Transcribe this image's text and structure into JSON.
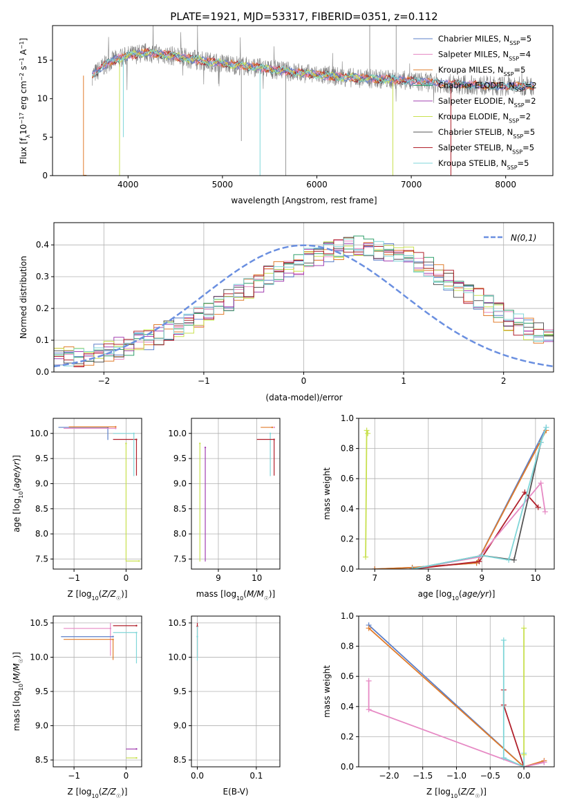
{
  "figure_title": "PLATE=1921, MJD=53317, FIBERID=0351, z=0.112",
  "colors": {
    "chabrier_miles": "#5b7fc8",
    "salpeter_miles": "#e689c4",
    "kroupa_miles": "#e07b2a",
    "chabrier_elodie": "#2e9f6a",
    "salpeter_elodie": "#a23fb0",
    "kroupa_elodie": "#c8e04e",
    "chabrier_stelib": "#555555",
    "salpeter_stelib": "#b01f2a",
    "kroupa_stelib": "#7fd6d8",
    "gaussian": "#6a8fe0",
    "data": "#7f7f7f"
  },
  "chart_data": [
    {
      "id": "spectrum",
      "type": "line",
      "xlabel": "wavelength [Angstrom, rest frame]",
      "ylabel": "Flux [f_λ10^-17 erg cm^-2 s^-1 A^-1]",
      "xlim": [
        3200,
        8500
      ],
      "ylim": [
        0,
        19.5
      ],
      "xticks": [
        4000,
        5000,
        6000,
        7000,
        8000
      ],
      "yticks": [
        0,
        5,
        10,
        15
      ],
      "grid": false,
      "legend_position": "top-right",
      "legend": [
        {
          "model": "Chabrier MILES",
          "nssp": "5",
          "color_key": "chabrier_miles"
        },
        {
          "model": "Salpeter MILES",
          "nssp": "4",
          "color_key": "salpeter_miles"
        },
        {
          "model": "Kroupa MILES",
          "nssp": "5",
          "color_key": "kroupa_miles"
        },
        {
          "model": "Chabrier ELODIE",
          "nssp": "2",
          "color_key": "chabrier_elodie"
        },
        {
          "model": "Salpeter ELODIE",
          "nssp": "2",
          "color_key": "salpeter_elodie"
        },
        {
          "model": "Kroupa ELODIE",
          "nssp": "2",
          "color_key": "kroupa_elodie"
        },
        {
          "model": "Chabrier STELIB",
          "nssp": "5",
          "color_key": "chabrier_stelib"
        },
        {
          "model": "Salpeter STELIB",
          "nssp": "5",
          "color_key": "salpeter_stelib"
        },
        {
          "model": "Kroupa STELIB",
          "nssp": "5",
          "color_key": "kroupa_stelib"
        }
      ],
      "model_continuum": {
        "x": [
          3620,
          3800,
          4000,
          4200,
          4400,
          4600,
          4800,
          5000,
          5200,
          5400,
          5600,
          5800,
          6000,
          6200,
          6400,
          6600,
          6800,
          7000,
          7200,
          7400,
          7600,
          7800,
          8000,
          8200,
          8300
        ],
        "y": [
          13.0,
          14.8,
          15.6,
          16.0,
          15.7,
          15.3,
          14.9,
          14.6,
          14.3,
          14.0,
          13.7,
          13.4,
          13.1,
          12.9,
          12.7,
          12.6,
          12.5,
          12.3,
          12.1,
          11.9,
          11.8,
          11.7,
          11.6,
          11.6,
          11.7
        ]
      },
      "model_dips": [
        {
          "x": 3528,
          "y": 0.0,
          "series": "kroupa_miles"
        },
        {
          "x": 3910,
          "y": 0.0,
          "series": "kroupa_elodie"
        },
        {
          "x": 5398,
          "y": 0.0,
          "series": "kroupa_stelib"
        },
        {
          "x": 6805,
          "y": 0.0,
          "series": "kroupa_elodie"
        },
        {
          "x": 7420,
          "y": 0.0,
          "series": "salpeter_stelib"
        },
        {
          "x": 3950,
          "y": 5.0,
          "series": "kroupa_stelib"
        }
      ],
      "data_spikes": [
        {
          "x": 5670,
          "y": 0.0
        },
        {
          "x": 5200,
          "y": 4.5
        },
        {
          "x": 6560,
          "y": 19.5
        },
        {
          "x": 6840,
          "y": 19.5
        }
      ]
    },
    {
      "id": "residuals",
      "type": "histogram",
      "xlabel": "(data-model)/error",
      "ylabel": "Normed distribution",
      "xlim": [
        -2.5,
        2.5
      ],
      "ylim": [
        0,
        0.47
      ],
      "xticks": [
        -2,
        -1,
        0,
        1,
        2
      ],
      "yticks": [
        0.0,
        0.1,
        0.2,
        0.3,
        0.4
      ],
      "grid": true,
      "legend_position": "top-right",
      "legend_label": "N(0,1)",
      "bin_width": 0.1,
      "histogram_base": [
        0.04,
        0.045,
        0.05,
        0.055,
        0.06,
        0.068,
        0.075,
        0.085,
        0.095,
        0.105,
        0.115,
        0.128,
        0.14,
        0.155,
        0.17,
        0.19,
        0.21,
        0.225,
        0.245,
        0.265,
        0.285,
        0.3,
        0.315,
        0.33,
        0.34,
        0.355,
        0.365,
        0.38,
        0.385,
        0.39,
        0.395,
        0.39,
        0.385,
        0.38,
        0.37,
        0.36,
        0.345,
        0.33,
        0.31,
        0.29,
        0.27,
        0.25,
        0.23,
        0.21,
        0.185,
        0.165,
        0.15,
        0.135,
        0.12,
        0.105,
        0.09,
        0.078,
        0.07,
        0.062,
        0.055,
        0.05,
        0.045,
        0.04,
        0.035,
        0.03
      ],
      "histogram_xstart": -2.5
    },
    {
      "id": "age_vs_z",
      "type": "scatter",
      "xlabel": "Z [log10(Z/Z☉)]",
      "ylabel": "age [log10(age/yr)]",
      "xlim": [
        -1.4,
        0.3
      ],
      "ylim": [
        7.3,
        10.3
      ],
      "xticks": [
        -1,
        0
      ],
      "yticks": [
        7.5,
        8.0,
        8.5,
        9.0,
        9.5,
        10.0
      ],
      "grid": true,
      "errorbars": [
        {
          "x": -0.35,
          "y": 10.12,
          "xerr_lo": 0.95,
          "xerr_hi": 0.0,
          "yerr_lo": 0.25,
          "yerr_hi": 0.0,
          "color_key": "chabrier_miles"
        },
        {
          "x": -0.2,
          "y": 10.1,
          "xerr_lo": 1.0,
          "xerr_hi": 0.0,
          "yerr_lo": 0.0,
          "yerr_hi": 0.0,
          "color_key": "salpeter_miles"
        },
        {
          "x": -0.2,
          "y": 10.13,
          "xerr_lo": 0.9,
          "xerr_hi": 0.0,
          "yerr_lo": 0.0,
          "yerr_hi": 0.0,
          "color_key": "kroupa_miles"
        },
        {
          "x": 0.2,
          "y": 9.88,
          "xerr_lo": 0.45,
          "xerr_hi": 0.0,
          "yerr_lo": 0.72,
          "yerr_hi": 0.0,
          "color_key": "salpeter_stelib"
        },
        {
          "x": 0.15,
          "y": 10.0,
          "xerr_lo": 0.4,
          "xerr_hi": 0.0,
          "yerr_lo": 0.85,
          "yerr_hi": 0.0,
          "color_key": "kroupa_stelib"
        },
        {
          "x": 0.0,
          "y": 9.8,
          "xerr_lo": 0.0,
          "xerr_hi": 0.0,
          "yerr_lo": 2.35,
          "yerr_hi": 0.0,
          "color_key": "kroupa_elodie"
        },
        {
          "x": 0.25,
          "y": 7.46,
          "xerr_lo": 0.25,
          "xerr_hi": 0.0,
          "yerr_lo": 0.0,
          "yerr_hi": 0.0,
          "color_key": "kroupa_elodie"
        }
      ]
    },
    {
      "id": "age_vs_mass",
      "type": "scatter",
      "xlabel": "mass [log10(M/M☉)]",
      "ylabel": "",
      "xlim": [
        8.3,
        10.6
      ],
      "ylim": [
        7.3,
        10.3
      ],
      "xticks": [
        9,
        10
      ],
      "yticks": [
        7.5,
        8.0,
        8.5,
        9.0,
        9.5,
        10.0
      ],
      "grid": true,
      "errorbars": [
        {
          "x": 10.45,
          "y": 10.12,
          "xerr_lo": 0.0,
          "xerr_hi": 0.0,
          "yerr_lo": 0.0,
          "yerr_hi": 0.0,
          "color_key": "salpeter_miles"
        },
        {
          "x": 10.4,
          "y": 10.12,
          "xerr_lo": 0.3,
          "xerr_hi": 0.0,
          "yerr_lo": 0.0,
          "yerr_hi": 0.0,
          "color_key": "kroupa_miles"
        },
        {
          "x": 10.35,
          "y": 10.0,
          "xerr_lo": 0.0,
          "xerr_hi": 0.0,
          "yerr_lo": 0.85,
          "yerr_hi": 0.0,
          "color_key": "kroupa_stelib"
        },
        {
          "x": 10.45,
          "y": 9.88,
          "xerr_lo": 0.45,
          "xerr_hi": 0.0,
          "yerr_lo": 0.72,
          "yerr_hi": 0.0,
          "color_key": "salpeter_stelib"
        },
        {
          "x": 8.52,
          "y": 9.8,
          "xerr_lo": 0.0,
          "xerr_hi": 0.0,
          "yerr_lo": 2.35,
          "yerr_hi": 0.0,
          "color_key": "kroupa_elodie"
        },
        {
          "x": 8.66,
          "y": 9.72,
          "xerr_lo": 0.0,
          "xerr_hi": 0.0,
          "yerr_lo": 2.27,
          "yerr_hi": 0.0,
          "color_key": "salpeter_elodie"
        }
      ]
    },
    {
      "id": "mass_weight_vs_age",
      "type": "line",
      "xlabel": "age [log10(age/yr)]",
      "ylabel": "mass weight",
      "xlim": [
        6.7,
        10.35
      ],
      "ylim": [
        0.0,
        1.0
      ],
      "xticks": [
        7,
        8,
        9,
        10
      ],
      "yticks": [
        0.0,
        0.2,
        0.4,
        0.6,
        0.8,
        1.0
      ],
      "grid": true,
      "series": [
        {
          "color_key": "kroupa_elodie",
          "x": [
            6.83,
            6.85,
            6.87
          ],
          "y": [
            0.08,
            0.92,
            0.9
          ]
        },
        {
          "color_key": "chabrier_miles",
          "x": [
            7.0,
            7.7,
            8.9,
            10.2
          ],
          "y": [
            0.0,
            0.01,
            0.04,
            0.94
          ]
        },
        {
          "color_key": "kroupa_miles",
          "x": [
            7.0,
            7.7,
            8.9,
            10.2
          ],
          "y": [
            0.0,
            0.01,
            0.04,
            0.92
          ]
        },
        {
          "color_key": "salpeter_stelib",
          "x": [
            7.7,
            8.95,
            9.8,
            10.05
          ],
          "y": [
            0.0,
            0.05,
            0.51,
            0.41
          ]
        },
        {
          "color_key": "salpeter_miles",
          "x": [
            7.7,
            8.95,
            10.1,
            10.18
          ],
          "y": [
            0.0,
            0.08,
            0.57,
            0.38
          ]
        },
        {
          "color_key": "chabrier_stelib",
          "x": [
            7.7,
            9.0,
            9.6,
            10.1
          ],
          "y": [
            0.0,
            0.09,
            0.06,
            0.84
          ]
        },
        {
          "color_key": "kroupa_stelib",
          "x": [
            7.7,
            9.0,
            9.5,
            10.1,
            10.2
          ],
          "y": [
            0.0,
            0.09,
            0.06,
            0.84,
            0.94
          ]
        }
      ]
    },
    {
      "id": "mass_vs_z",
      "type": "scatter",
      "xlabel": "Z [log10(Z/Z☉)]",
      "ylabel": "mass [log10(M/M☉)]",
      "xlim": [
        -1.4,
        0.3
      ],
      "ylim": [
        8.4,
        10.6
      ],
      "xticks": [
        -1,
        0
      ],
      "yticks": [
        8.5,
        9.0,
        9.5,
        10.0,
        10.5
      ],
      "grid": true,
      "errorbars": [
        {
          "x": -0.3,
          "y": 10.42,
          "xerr_lo": 0.9,
          "xerr_hi": 0.0,
          "yerr_lo": 0.4,
          "yerr_hi": 0.08,
          "color_key": "salpeter_miles"
        },
        {
          "x": -0.25,
          "y": 10.3,
          "xerr_lo": 1.0,
          "xerr_hi": 0.0,
          "yerr_lo": 0.0,
          "yerr_hi": 0.0,
          "color_key": "chabrier_miles"
        },
        {
          "x": -0.25,
          "y": 10.26,
          "xerr_lo": 0.95,
          "xerr_hi": 0.0,
          "yerr_lo": 0.3,
          "yerr_hi": 0.0,
          "color_key": "kroupa_miles"
        },
        {
          "x": 0.2,
          "y": 10.46,
          "xerr_lo": 0.45,
          "xerr_hi": 0.0,
          "yerr_lo": 0.0,
          "yerr_hi": 0.0,
          "color_key": "salpeter_stelib"
        },
        {
          "x": 0.2,
          "y": 10.36,
          "xerr_lo": 0.45,
          "xerr_hi": 0.0,
          "yerr_lo": 0.45,
          "yerr_hi": 0.0,
          "color_key": "kroupa_stelib"
        },
        {
          "x": 0.2,
          "y": 8.66,
          "xerr_lo": 0.2,
          "xerr_hi": 0.0,
          "yerr_lo": 0.0,
          "yerr_hi": 0.0,
          "color_key": "salpeter_elodie"
        },
        {
          "x": 0.2,
          "y": 8.53,
          "xerr_lo": 0.2,
          "xerr_hi": 0.0,
          "yerr_lo": 0.0,
          "yerr_hi": 0.0,
          "color_key": "kroupa_elodie"
        }
      ]
    },
    {
      "id": "mass_vs_ebv",
      "type": "scatter",
      "xlabel": "E(B-V)",
      "ylabel": "",
      "xlim": [
        -0.01,
        0.14
      ],
      "ylim": [
        8.4,
        10.6
      ],
      "xticks": [
        0.0,
        0.1
      ],
      "yticks": [
        8.5,
        9.0,
        9.5,
        10.0,
        10.5
      ],
      "grid": true,
      "errorbars": [
        {
          "x": 0.0,
          "y": 10.45,
          "xerr_lo": 0.0,
          "xerr_hi": 0.0,
          "yerr_lo": 0.45,
          "yerr_hi": 0.05,
          "color_key": "salpeter_stelib"
        },
        {
          "x": 0.0,
          "y": 10.3,
          "xerr_lo": 0.0,
          "xerr_hi": 0.0,
          "yerr_lo": 0.35,
          "yerr_hi": 0.15,
          "color_key": "kroupa_stelib"
        }
      ]
    },
    {
      "id": "mass_weight_vs_z",
      "type": "line",
      "xlabel": "Z [log10(Z/Z☉)]",
      "ylabel": "mass weight",
      "xlim": [
        -2.45,
        0.45
      ],
      "ylim": [
        0.0,
        1.0
      ],
      "xticks": [
        -2.0,
        -1.5,
        -1.0,
        -0.5,
        0.0
      ],
      "yticks": [
        0.0,
        0.2,
        0.4,
        0.6,
        0.8,
        1.0
      ],
      "grid": true,
      "series": [
        {
          "color_key": "chabrier_miles",
          "x": [
            -2.3,
            0.0,
            0.3
          ],
          "y": [
            0.94,
            0.0,
            0.03
          ]
        },
        {
          "color_key": "kroupa_miles",
          "x": [
            -2.3,
            0.0,
            0.3
          ],
          "y": [
            0.92,
            0.0,
            0.04
          ]
        },
        {
          "color_key": "salpeter_miles",
          "x": [
            -2.3,
            -2.3,
            0.0,
            0.3
          ],
          "y": [
            0.57,
            0.38,
            0.0,
            0.03
          ]
        },
        {
          "color_key": "salpeter_stelib",
          "x": [
            -0.3,
            -0.3,
            0.0
          ],
          "y": [
            0.51,
            0.41,
            0.0
          ]
        },
        {
          "color_key": "kroupa_stelib",
          "x": [
            -0.3,
            -0.3,
            0.0,
            0.0
          ],
          "y": [
            0.84,
            0.06,
            0.0,
            0.09
          ]
        },
        {
          "color_key": "kroupa_elodie",
          "x": [
            0.0,
            0.0
          ],
          "y": [
            0.92,
            0.08
          ]
        }
      ]
    }
  ]
}
